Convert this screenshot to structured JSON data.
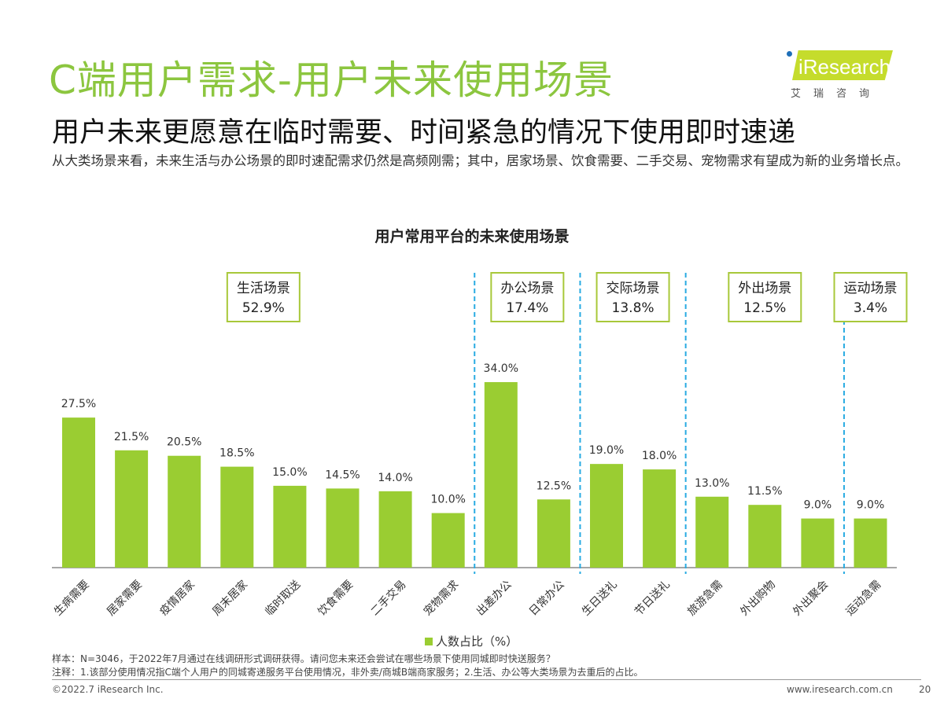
{
  "header": {
    "title": "C端用户需求-用户未来使用场景",
    "subtitle": "用户未来更愿意在临时需要、时间紧急的情况下使用即时速递",
    "description": "从大类场景来看，未来生活与办公场景的即时速配需求仍然是高频刚需；其中，居家场景、饮食需要、二手交易、宠物需求有望成为新的业务增长点。"
  },
  "logo": {
    "text": "iResearch",
    "cn": "艾瑞咨询"
  },
  "chart_data": {
    "type": "bar",
    "title": "用户常用平台的未来使用场景",
    "categories": [
      "生病需要",
      "居家需要",
      "疫情居家",
      "周末居家",
      "临时取送",
      "饮食需要",
      "二手交易",
      "宠物需求",
      "出差办公",
      "日常办公",
      "生日送礼",
      "节日送礼",
      "旅游急需",
      "外出购物",
      "外出聚会",
      "运动急需"
    ],
    "series": [
      {
        "name": "人数占比（%）",
        "values": [
          27.5,
          21.5,
          20.5,
          18.5,
          15.0,
          14.5,
          14.0,
          10.0,
          34.0,
          12.5,
          19.0,
          18.0,
          13.0,
          11.5,
          9.0,
          9.0
        ]
      }
    ],
    "data_labels": [
      "27.5%",
      "21.5%",
      "20.5%",
      "18.5%",
      "15.0%",
      "14.5%",
      "14.0%",
      "10.0%",
      "34.0%",
      "12.5%",
      "19.0%",
      "18.0%",
      "13.0%",
      "11.5%",
      "9.0%",
      "9.0%"
    ],
    "groups": [
      {
        "name": "生活场景",
        "value": "52.9%",
        "start": 0,
        "end": 7
      },
      {
        "name": "办公场景",
        "value": "17.4%",
        "start": 8,
        "end": 9
      },
      {
        "name": "交际场景",
        "value": "13.8%",
        "start": 10,
        "end": 11
      },
      {
        "name": "外出场景",
        "value": "12.5%",
        "start": 12,
        "end": 14
      },
      {
        "name": "运动场景",
        "value": "3.4%",
        "start": 15,
        "end": 15
      }
    ],
    "legend": "bottom",
    "bar_color": "#9acd32",
    "divider_color": "#29abe2",
    "ylim": [
      0,
      40
    ],
    "grid": false
  },
  "notes": {
    "sample": "样本：N=3046，于2022年7月通过在线调研形式调研获得。请问您未来还会尝试在哪些场景下使用同城即时快送服务？",
    "note": "注释：1.该部分使用情况指C端个人用户的同城寄递服务平台使用情况，非外卖/商城B端商家服务；2.生活、办公等大类场景为去重后的占比。"
  },
  "footer": {
    "copyright": "©2022.7 iResearch Inc.",
    "website": "www.iresearch.com.cn",
    "page": "20"
  }
}
